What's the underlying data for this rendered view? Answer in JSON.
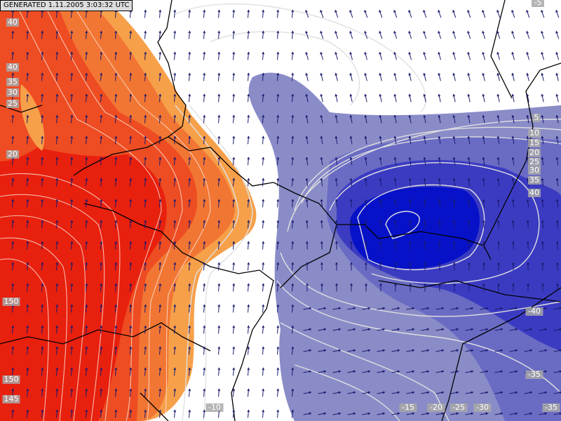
{
  "header": {
    "generated": "GENERATED 1.11.2005 3:03:32 UTC"
  },
  "contour_labels": [
    "40",
    "40",
    "35",
    "30",
    "25",
    "20",
    "150",
    "150",
    "145",
    "5",
    "10",
    "15",
    "20",
    "25",
    "30",
    "35",
    "40",
    "-40",
    "-35",
    "-35",
    "-10",
    "-15",
    "-20",
    "-25",
    "-30",
    "-5"
  ]
}
